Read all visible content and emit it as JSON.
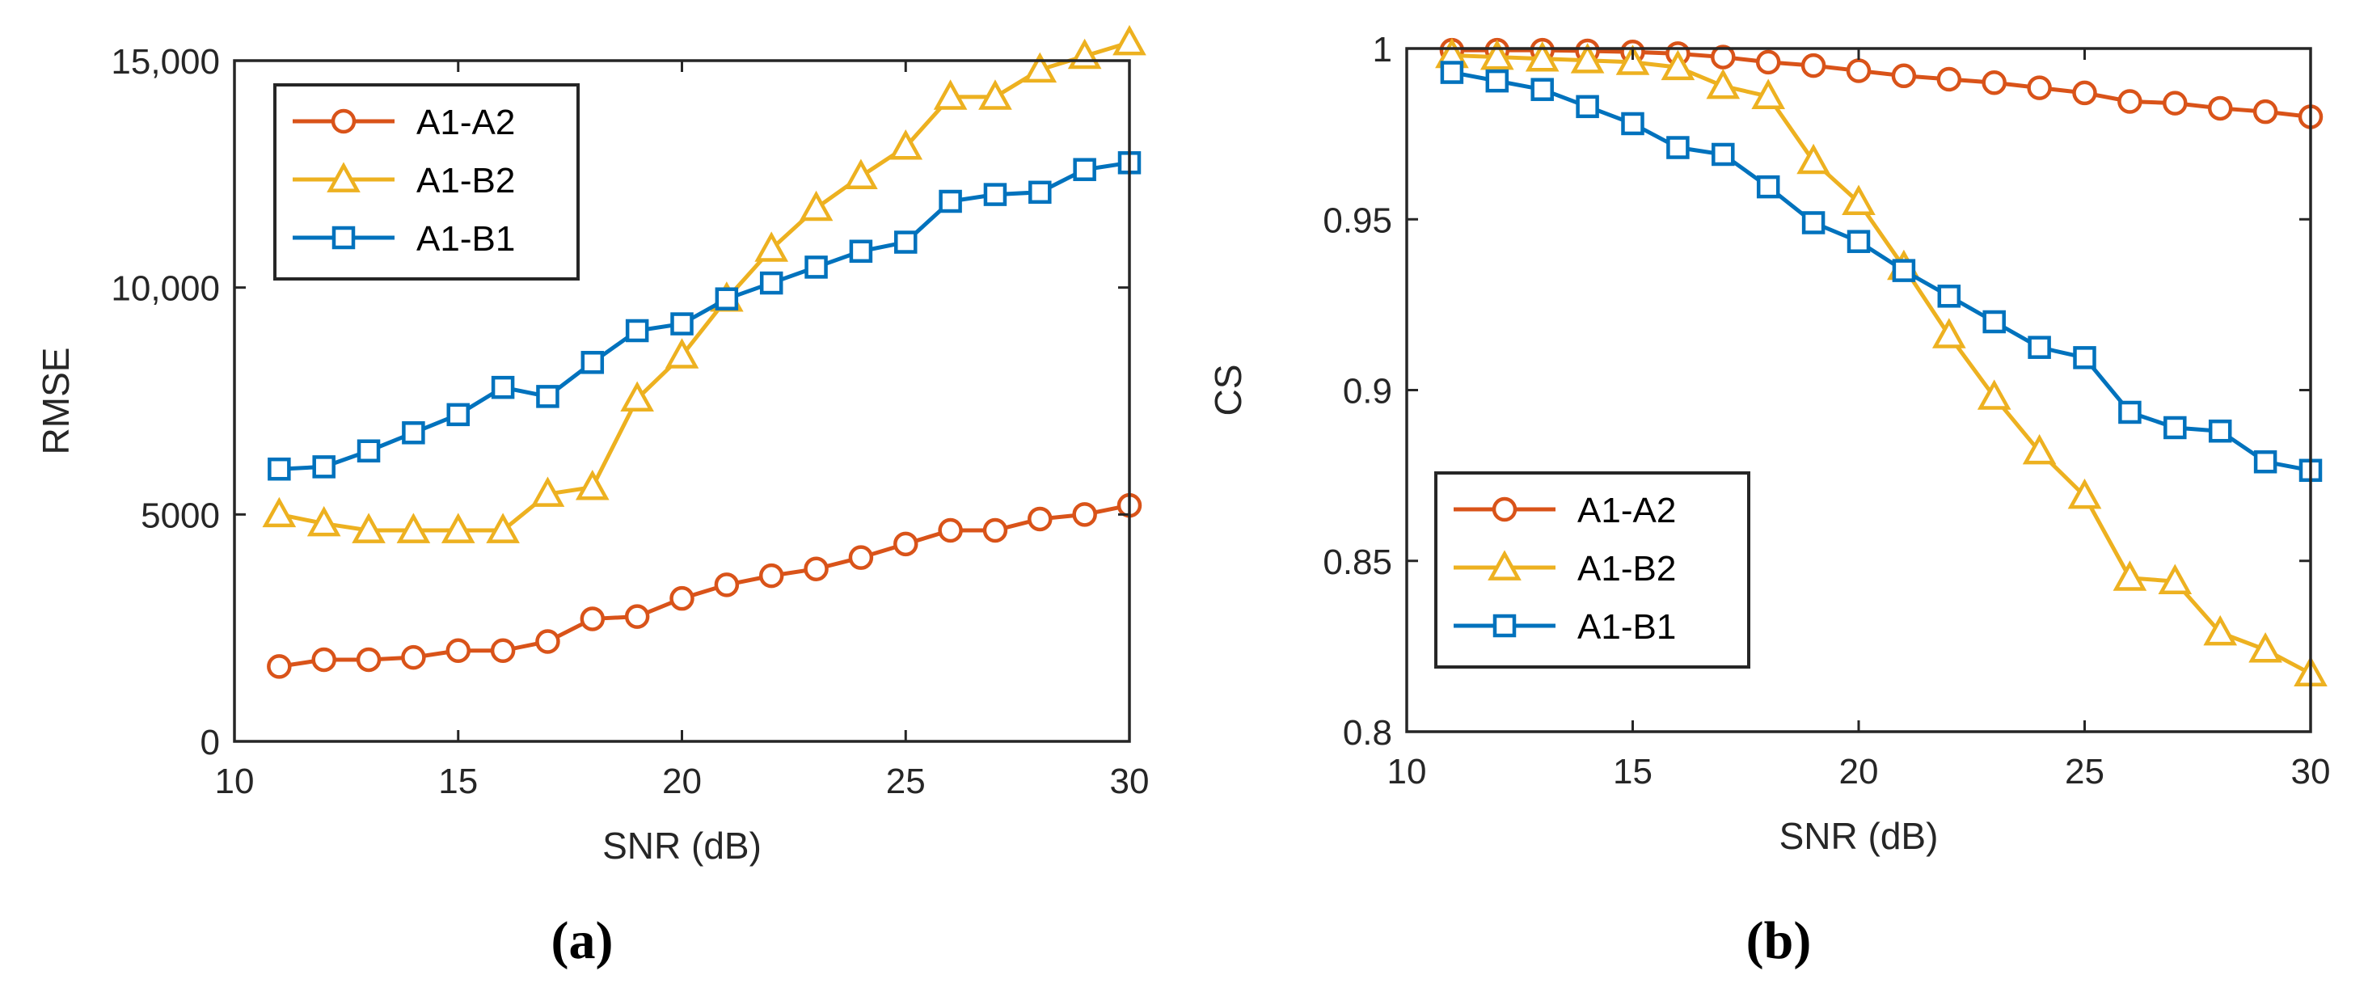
{
  "chart_data": [
    {
      "id": "a",
      "type": "line",
      "caption": "(a)",
      "xlabel": "SNR (dB)",
      "ylabel": "RMSE",
      "xlim": [
        10,
        30
      ],
      "ylim": [
        0,
        15000
      ],
      "xticks": [
        10,
        15,
        20,
        25,
        30
      ],
      "xtick_labels": [
        "10",
        "15",
        "20",
        "25",
        "30"
      ],
      "yticks": [
        0,
        5000,
        10000,
        15000
      ],
      "ytick_labels": [
        "0",
        "5000",
        "10,000",
        "15,000"
      ],
      "grid": false,
      "legend_position": "top-left",
      "x": [
        11,
        12,
        13,
        14,
        15,
        16,
        17,
        18,
        19,
        20,
        21,
        22,
        23,
        24,
        25,
        26,
        27,
        28,
        29,
        30
      ],
      "series": [
        {
          "name": "A1-A2",
          "color": "#D95319",
          "marker": "circle",
          "values": [
            1650,
            1800,
            1800,
            1850,
            2000,
            2000,
            2200,
            2700,
            2750,
            3150,
            3450,
            3650,
            3800,
            4050,
            4350,
            4650,
            4650,
            4900,
            5000,
            5200
          ]
        },
        {
          "name": "A1-B2",
          "color": "#EDB120",
          "marker": "triangle",
          "values": [
            5000,
            4800,
            4650,
            4650,
            4650,
            4650,
            5450,
            5600,
            7550,
            8500,
            9750,
            10850,
            11750,
            12450,
            13100,
            14200,
            14200,
            14800,
            15100,
            15400
          ]
        },
        {
          "name": "A1-B1",
          "color": "#0072BD",
          "marker": "square",
          "values": [
            6000,
            6050,
            6400,
            6800,
            7200,
            7800,
            7600,
            8350,
            9050,
            9200,
            9750,
            10100,
            10450,
            10800,
            11000,
            11900,
            12050,
            12100,
            12600,
            12750
          ]
        }
      ]
    },
    {
      "id": "b",
      "type": "line",
      "caption": "(b)",
      "xlabel": "SNR (dB)",
      "ylabel": "CS",
      "xlim": [
        10,
        30
      ],
      "ylim": [
        0.8,
        1
      ],
      "xticks": [
        10,
        15,
        20,
        25,
        30
      ],
      "xtick_labels": [
        "10",
        "15",
        "20",
        "25",
        "30"
      ],
      "yticks": [
        0.8,
        0.85,
        0.9,
        0.95,
        1
      ],
      "ytick_labels": [
        "0.8",
        "0.85",
        "0.9",
        "0.95",
        "1"
      ],
      "grid": false,
      "legend_position": "bottom-left",
      "x": [
        11,
        12,
        13,
        14,
        15,
        16,
        17,
        18,
        19,
        20,
        21,
        22,
        23,
        24,
        25,
        26,
        27,
        28,
        29,
        30
      ],
      "series": [
        {
          "name": "A1-A2",
          "color": "#D95319",
          "marker": "circle",
          "values": [
            0.9995,
            0.9995,
            0.9995,
            0.9993,
            0.999,
            0.9985,
            0.9975,
            0.996,
            0.995,
            0.9935,
            0.992,
            0.991,
            0.99,
            0.9885,
            0.987,
            0.9845,
            0.984,
            0.9825,
            0.9815,
            0.98
          ]
        },
        {
          "name": "A1-B2",
          "color": "#EDB120",
          "marker": "triangle",
          "values": [
            0.998,
            0.9975,
            0.997,
            0.9965,
            0.996,
            0.9945,
            0.989,
            0.986,
            0.967,
            0.955,
            0.936,
            0.916,
            0.898,
            0.882,
            0.869,
            0.845,
            0.844,
            0.829,
            0.824,
            0.817
          ]
        },
        {
          "name": "A1-B1",
          "color": "#0072BD",
          "marker": "square",
          "values": [
            0.993,
            0.9905,
            0.988,
            0.983,
            0.978,
            0.971,
            0.969,
            0.9595,
            0.949,
            0.9435,
            0.935,
            0.9275,
            0.92,
            0.9125,
            0.9095,
            0.8935,
            0.889,
            0.888,
            0.879,
            0.8765
          ]
        }
      ]
    }
  ]
}
